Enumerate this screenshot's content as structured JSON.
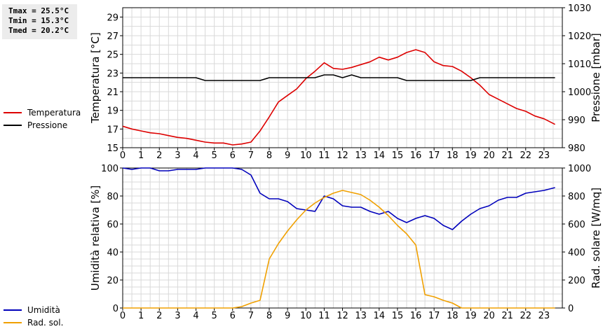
{
  "stats": {
    "tmax": "Tmax = 25.5°C",
    "tmin": "Tmin = 15.3°C",
    "tmed": "Tmed = 20.2°C"
  },
  "legend_top": [
    {
      "label": "Temperatura",
      "color": "#dd0000"
    },
    {
      "label": "Pressione",
      "color": "#000000"
    }
  ],
  "legend_bottom": [
    {
      "label": "Umidità",
      "color": "#0000bb"
    },
    {
      "label": "Rad. sol.",
      "color": "#f0a000"
    }
  ],
  "chart_data": [
    {
      "type": "line",
      "ylabel": "Temperatura [°C]",
      "y2label": "Pressione [mbar]",
      "xlim": [
        0,
        24
      ],
      "ylim": [
        15,
        30
      ],
      "y2lim": [
        980,
        1030
      ],
      "x_ticks": [
        0,
        1,
        2,
        3,
        4,
        5,
        6,
        7,
        8,
        9,
        10,
        11,
        12,
        13,
        14,
        15,
        16,
        17,
        18,
        19,
        20,
        21,
        22,
        23
      ],
      "y_ticks": [
        15,
        17,
        19,
        21,
        23,
        25,
        27,
        29
      ],
      "y2_ticks": [
        980,
        990,
        1000,
        1010,
        1020,
        1030
      ],
      "grid": true,
      "series": [
        {
          "name": "Temperatura",
          "axis": "left",
          "color": "#dd0000",
          "x": [
            0,
            0.5,
            1,
            1.5,
            2,
            2.5,
            3,
            3.5,
            4,
            4.5,
            5,
            5.5,
            6,
            6.5,
            7,
            7.5,
            8,
            8.5,
            9,
            9.5,
            10,
            10.5,
            11,
            11.5,
            12,
            12.5,
            13,
            13.5,
            14,
            14.5,
            15,
            15.5,
            16,
            16.5,
            17,
            17.5,
            18,
            18.5,
            19,
            19.5,
            20,
            20.5,
            21,
            21.5,
            22,
            22.5,
            23,
            23.6
          ],
          "values": [
            17.3,
            17.0,
            16.8,
            16.6,
            16.5,
            16.3,
            16.1,
            16.0,
            15.8,
            15.6,
            15.5,
            15.5,
            15.3,
            15.4,
            15.6,
            16.8,
            18.3,
            19.9,
            20.6,
            21.3,
            22.4,
            23.2,
            24.1,
            23.5,
            23.4,
            23.6,
            23.9,
            24.2,
            24.7,
            24.4,
            24.7,
            25.2,
            25.5,
            25.2,
            24.2,
            23.8,
            23.7,
            23.2,
            22.5,
            21.7,
            20.7,
            20.2,
            19.7,
            19.2,
            18.9,
            18.4,
            18.1,
            17.5
          ]
        },
        {
          "name": "Pressione",
          "axis": "right",
          "color": "#000000",
          "x": [
            0,
            0.5,
            1,
            1.5,
            2,
            2.5,
            3,
            3.5,
            4,
            4.5,
            5,
            5.5,
            6,
            6.5,
            7,
            7.5,
            8,
            8.5,
            9,
            9.5,
            10,
            10.5,
            11,
            11.5,
            12,
            12.5,
            13,
            13.5,
            14,
            14.5,
            15,
            15.5,
            16,
            16.5,
            17,
            17.5,
            18,
            18.5,
            19,
            19.5,
            20,
            20.5,
            21,
            21.5,
            22,
            22.5,
            23,
            23.6
          ],
          "values": [
            1005,
            1005,
            1005,
            1005,
            1005,
            1005,
            1005,
            1005,
            1005,
            1004,
            1004,
            1004,
            1004,
            1004,
            1004,
            1004,
            1005,
            1005,
            1005,
            1005,
            1005,
            1005,
            1006,
            1006,
            1005,
            1006,
            1005,
            1005,
            1005,
            1005,
            1005,
            1004,
            1004,
            1004,
            1004,
            1004,
            1004,
            1004,
            1004,
            1005,
            1005,
            1005,
            1005,
            1005,
            1005,
            1005,
            1005,
            1005
          ]
        }
      ]
    },
    {
      "type": "line",
      "ylabel": "Umidità relativa [%]",
      "y2label": "Rad. solare [W/mq]",
      "xlim": [
        0,
        24
      ],
      "ylim": [
        0,
        100
      ],
      "y2lim": [
        0,
        1000
      ],
      "x_ticks": [
        0,
        1,
        2,
        3,
        4,
        5,
        6,
        7,
        8,
        9,
        10,
        11,
        12,
        13,
        14,
        15,
        16,
        17,
        18,
        19,
        20,
        21,
        22,
        23
      ],
      "y_ticks": [
        0,
        20,
        40,
        60,
        80,
        100
      ],
      "y2_ticks": [
        0,
        200,
        400,
        600,
        800,
        1000
      ],
      "grid": true,
      "series": [
        {
          "name": "Umidità",
          "axis": "left",
          "color": "#0000bb",
          "x": [
            0,
            0.5,
            1,
            1.5,
            2,
            2.5,
            3,
            3.5,
            4,
            4.5,
            5,
            5.5,
            6,
            6.5,
            7,
            7.5,
            8,
            8.5,
            9,
            9.5,
            10,
            10.5,
            11,
            11.5,
            12,
            12.5,
            13,
            13.5,
            14,
            14.5,
            15,
            15.5,
            16,
            16.5,
            17,
            17.5,
            18,
            18.5,
            19,
            19.5,
            20,
            20.5,
            21,
            21.5,
            22,
            22.5,
            23,
            23.6
          ],
          "values": [
            100,
            99,
            100,
            100,
            98,
            98,
            99,
            99,
            99,
            100,
            100,
            100,
            100,
            99,
            95,
            82,
            78,
            78,
            76,
            71,
            70,
            69,
            80,
            78,
            73,
            72,
            72,
            69,
            67,
            69,
            64,
            61,
            64,
            66,
            64,
            59,
            56,
            62,
            67,
            71,
            73,
            77,
            79,
            79,
            82,
            83,
            84,
            86
          ]
        },
        {
          "name": "Rad. sol.",
          "axis": "right",
          "color": "#f0a000",
          "x": [
            0,
            0.5,
            1,
            1.5,
            2,
            2.5,
            3,
            3.5,
            4,
            4.5,
            5,
            5.5,
            6,
            6.5,
            7,
            7.5,
            8,
            8.5,
            9,
            9.5,
            10,
            10.5,
            11,
            11.5,
            12,
            12.5,
            13,
            13.5,
            14,
            14.5,
            15,
            15.5,
            16,
            16.5,
            17,
            17.5,
            18,
            18.5,
            19,
            19.5,
            20,
            20.5,
            21,
            21.5,
            22,
            22.5,
            23,
            23.6
          ],
          "values": [
            0,
            0,
            0,
            0,
            0,
            0,
            0,
            0,
            0,
            0,
            0,
            0,
            0,
            10,
            35,
            55,
            350,
            460,
            550,
            630,
            700,
            750,
            790,
            820,
            840,
            825,
            810,
            770,
            720,
            660,
            590,
            530,
            450,
            95,
            80,
            55,
            35,
            0,
            0,
            0,
            0,
            0,
            0,
            0,
            0,
            0,
            0,
            0
          ]
        }
      ]
    }
  ]
}
